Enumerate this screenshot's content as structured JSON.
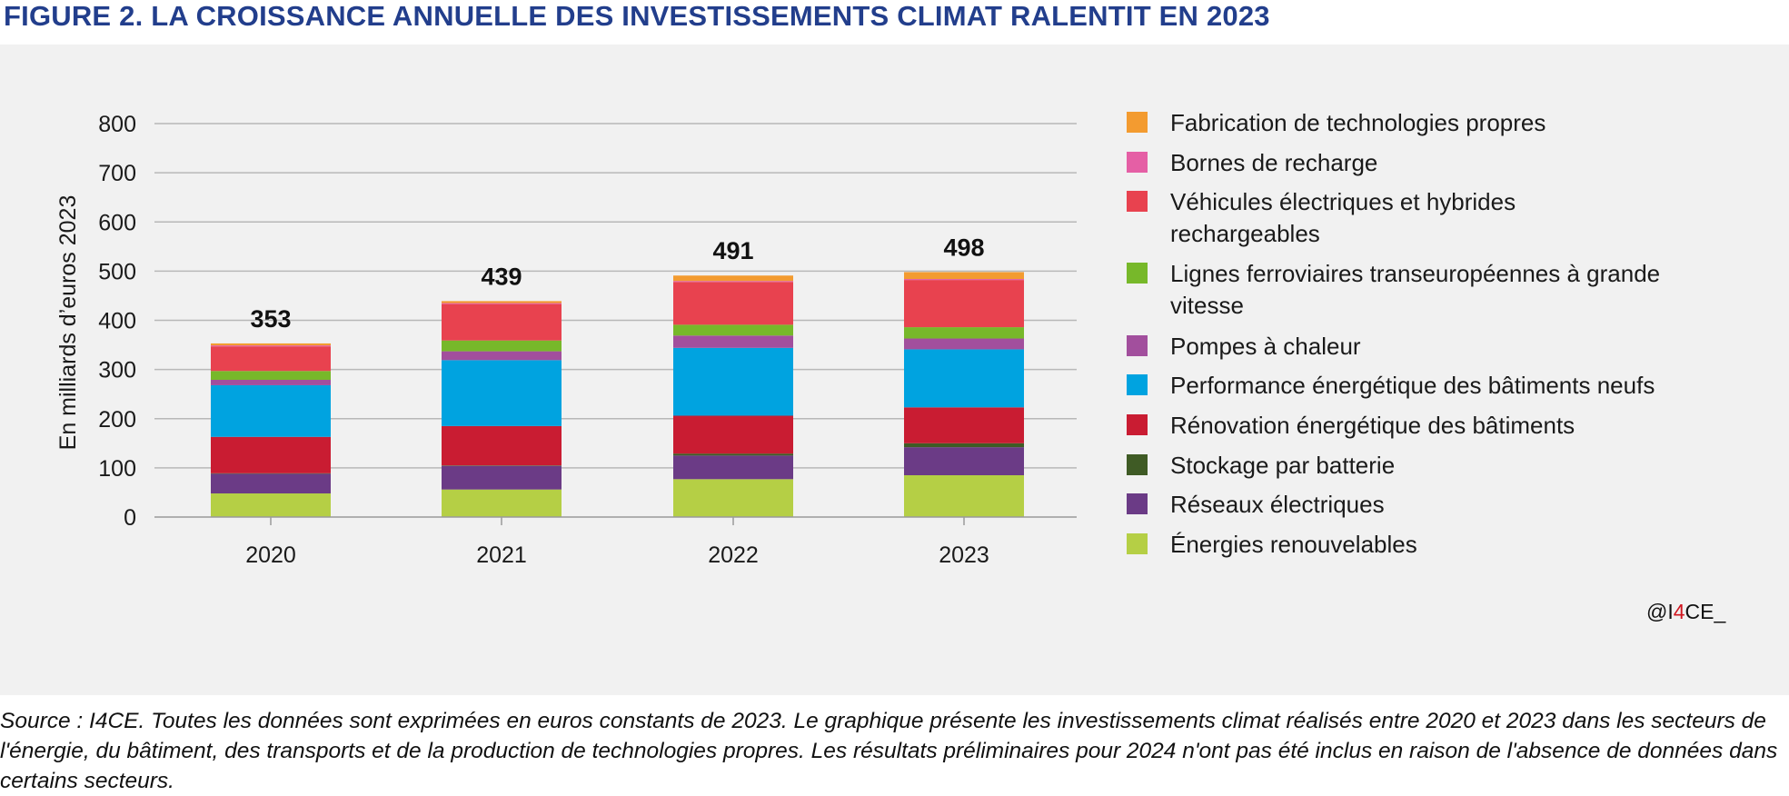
{
  "title": "FIGURE 2. LA CROISSANCE ANNUELLE DES INVESTISSEMENTS CLIMAT RALENTIT EN 2023",
  "credit": {
    "prefix": "@I",
    "highlight": "4",
    "suffix": "CE_"
  },
  "source": "Source : I4CE. Toutes les données sont exprimées en euros constants de 2023. Le graphique présente les investissements climat réalisés entre 2020 et 2023 dans les secteurs de l'énergie, du bâtiment, des transports et de la production de technologies propres. Les résultats préliminaires pour 2024 n'ont pas été inclus en raison de l'absence de données dans certains secteurs.",
  "chart_data": {
    "type": "bar",
    "stacked": true,
    "ylabel": "En milliards d’euros 2023",
    "ylim": [
      0,
      800
    ],
    "yticks": [
      0,
      100,
      200,
      300,
      400,
      500,
      600,
      700,
      800
    ],
    "grid": true,
    "legend_position": "right",
    "categories": [
      "2020",
      "2021",
      "2022",
      "2023"
    ],
    "totals": [
      "353",
      "439",
      "491",
      "498"
    ],
    "series": [
      {
        "name": "Énergies renouvelables",
        "color": "#b5cf45",
        "values": [
          48,
          56,
          77,
          85
        ]
      },
      {
        "name": "Réseaux électriques",
        "color": "#6b3b86",
        "values": [
          40,
          48,
          48,
          57
        ]
      },
      {
        "name": "Stockage par batterie",
        "color": "#3f5b25",
        "values": [
          1,
          1,
          4,
          8
        ]
      },
      {
        "name": "Rénovation énergétique des bâtiments",
        "color": "#c91c32",
        "values": [
          74,
          80,
          77,
          73
        ]
      },
      {
        "name": "Performance énergétique des bâtiments neufs",
        "color": "#00a3e0",
        "values": [
          105,
          134,
          138,
          118
        ]
      },
      {
        "name": "Pompes à chaleur",
        "color": "#a24f9d",
        "values": [
          11,
          18,
          25,
          22
        ]
      },
      {
        "name": "Lignes ferroviaires transeuropéennes à grande vitesse",
        "color": "#77b82a",
        "values": [
          18,
          22,
          22,
          23
        ]
      },
      {
        "name": "Véhicules électriques et hybrides rechargeables",
        "color": "#e8424f",
        "values": [
          50,
          74,
          87,
          96
        ]
      },
      {
        "name": "Bornes de recharge",
        "color": "#e55fa5",
        "values": [
          2,
          2,
          2,
          2
        ]
      },
      {
        "name": "Fabrication de technologies propres",
        "color": "#f39b30",
        "values": [
          4,
          4,
          11,
          14
        ]
      }
    ],
    "legend_order": [
      "Fabrication de technologies propres",
      "Bornes de recharge",
      "Véhicules électriques et hybrides rechargeables",
      "Lignes ferroviaires transeuropéennes à grande vitesse",
      "Pompes à chaleur",
      "Performance énergétique des bâtiments neufs",
      "Rénovation énergétique des bâtiments",
      "Stockage par batterie",
      "Réseaux électriques",
      "Énergies renouvelables"
    ]
  }
}
